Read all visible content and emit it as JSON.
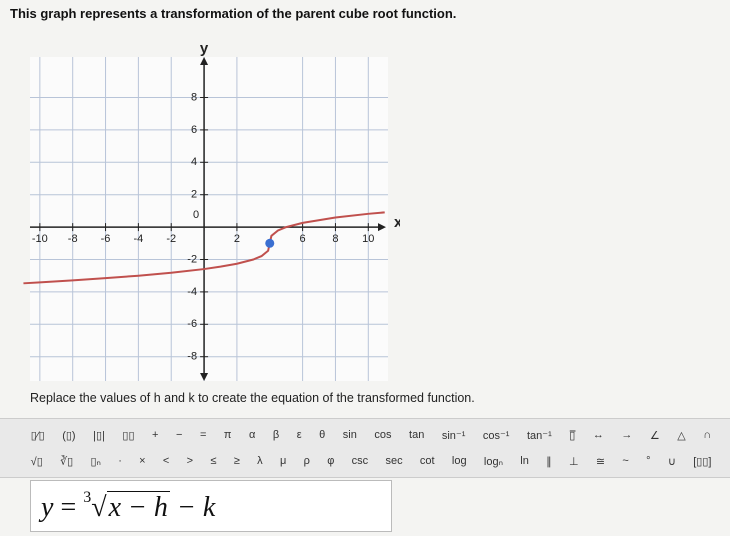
{
  "question": "This graph represents a transformation of the parent cube root function.",
  "chart_data": {
    "type": "line",
    "x_label": "x",
    "y_label": "y",
    "xlim": [
      -10.6,
      11.2
    ],
    "ylim": [
      -9.5,
      10.5
    ],
    "xticks": [
      -10,
      -8,
      -6,
      -4,
      -2,
      0,
      2,
      6,
      8,
      10
    ],
    "yticks": [
      -8,
      -6,
      -4,
      -2,
      2,
      4,
      6,
      8
    ],
    "grid": true,
    "series": [
      {
        "color": "#c0504d",
        "x": [
          -11,
          -10,
          -8,
          -6,
          -4,
          -2,
          0,
          1,
          2,
          3,
          3.5,
          3.9,
          4,
          4.1,
          4.5,
          5,
          6,
          8,
          10,
          11
        ],
        "values": [
          -3.47,
          -3.41,
          -3.29,
          -3.15,
          -3,
          -2.82,
          -2.59,
          -2.44,
          -2.26,
          -2,
          -1.79,
          -1.46,
          -1,
          -0.54,
          -0.21,
          0,
          0.26,
          0.59,
          0.82,
          0.91
        ]
      }
    ],
    "highlight_point": {
      "x": 4,
      "y": -1,
      "color": "#3a6fd1"
    }
  },
  "instruction": "Replace the values of h and k to create the equation of the transformed function.",
  "toolbar": {
    "row1": [
      "▯⁄▯",
      "(▯)",
      "|▯|",
      "▯▯",
      "+",
      "−",
      "=",
      "π",
      "α",
      "β",
      "ε",
      "θ",
      "sin",
      "cos",
      "tan",
      "sin⁻¹",
      "cos⁻¹",
      "tan⁻¹",
      "▯̅",
      "↔",
      "→",
      "∠",
      "△",
      "∩"
    ],
    "row2": [
      "√▯",
      "∛▯",
      "▯ₙ",
      "·",
      "×",
      "<",
      ">",
      "≤",
      "≥",
      "λ",
      "μ",
      "ρ",
      "φ",
      "csc",
      "sec",
      "cot",
      "log",
      "logₙ",
      "ln",
      "∥",
      "⊥",
      "≅",
      "~",
      "°",
      "∪",
      "[▯▯]"
    ]
  },
  "equation": {
    "lhs": "y",
    "eq": "=",
    "index": "3",
    "radicand": "x − h",
    "tail": "− k"
  }
}
